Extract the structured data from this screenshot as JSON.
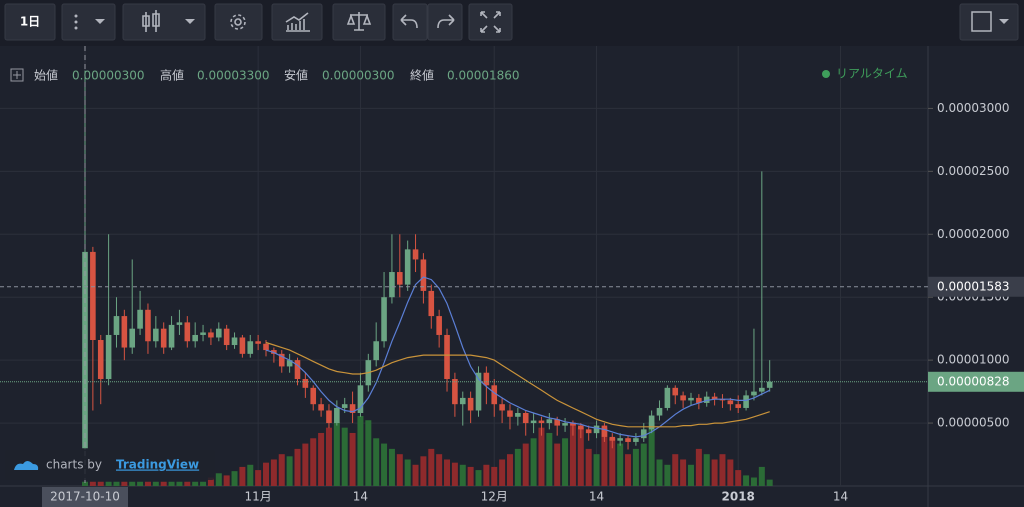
{
  "toolbar": {
    "interval": "1日"
  },
  "legend": {
    "open_label": "始値",
    "open": "0.00000300",
    "high_label": "高値",
    "high": "0.00003300",
    "low_label": "安値",
    "low": "0.00000300",
    "close_label": "終値",
    "close": "0.00001860",
    "status": "リアルタイム"
  },
  "branding": {
    "prefix": "charts by",
    "name": "TradingView"
  },
  "chart_data": {
    "type": "candlestick",
    "categories": [
      "2017-10-10",
      null,
      null,
      null,
      null,
      null,
      null,
      null,
      null,
      null,
      null,
      null,
      null,
      null,
      null,
      null,
      null,
      null,
      null,
      null,
      null,
      null,
      "11月",
      null,
      null,
      null,
      null,
      null,
      null,
      null,
      null,
      null,
      null,
      null,
      null,
      "14",
      null,
      null,
      null,
      null,
      null,
      null,
      null,
      null,
      null,
      null,
      null,
      null,
      null,
      null,
      null,
      null,
      "12月",
      null,
      null,
      null,
      null,
      null,
      null,
      null,
      null,
      null,
      null,
      null,
      null,
      "14",
      null,
      null,
      null,
      null,
      null,
      null,
      null,
      null,
      null,
      null,
      null,
      null,
      null,
      null,
      null,
      null,
      null,
      "2018",
      null,
      null,
      null,
      null,
      null,
      null,
      null,
      null,
      null,
      null,
      null,
      null,
      "14",
      null,
      null,
      null,
      null,
      null,
      null,
      null,
      null,
      null,
      null
    ],
    "open": [
      3e-06,
      1.86e-05,
      1.16e-05,
      8.5e-06,
      1.2e-05,
      1.35e-05,
      1.1e-05,
      1.25e-05,
      1.4e-05,
      1.15e-05,
      1.25e-05,
      1.1e-05,
      1.28e-05,
      1.3e-05,
      1.15e-05,
      1.2e-05,
      1.22e-05,
      1.18e-05,
      1.25e-05,
      1.12e-05,
      1.18e-05,
      1.05e-05,
      1.15e-05,
      1.13e-05,
      1.08e-05,
      1.05e-05,
      9.5e-06,
      1e-05,
      8.5e-06,
      7.8e-06,
      6.5e-06,
      6e-06,
      5e-06,
      6.2e-06,
      6.5e-06,
      5.8e-06,
      8e-06,
      1e-05,
      1.15e-05,
      1.5e-05,
      1.7e-05,
      1.6e-05,
      1.88e-05,
      1.8e-05,
      1.55e-05,
      1.35e-05,
      1.2e-05,
      8.5e-06,
      6.5e-06,
      7e-06,
      6e-06,
      9e-06,
      8e-06,
      6.5e-06,
      6e-06,
      5.5e-06,
      5.8e-06,
      5e-06,
      5.2e-06,
      5e-06,
      5.3e-06,
      4.8e-06,
      5e-06,
      4.8e-06,
      4.5e-06,
      4.2e-06,
      4.8e-06,
      3.9e-06,
      3.6e-06,
      3.8e-06,
      3.5e-06,
      3.8e-06,
      4.5e-06,
      5.6e-06,
      6.2e-06,
      7.8e-06,
      7.2e-06,
      6.8e-06,
      7e-06,
      6.6e-06,
      7.1e-06,
      6.9e-06,
      6.8e-06,
      6.5e-06,
      6.2e-06,
      7.2e-06,
      7.5e-06,
      7.8e-06,
      null,
      null,
      null,
      null,
      null,
      null,
      null,
      null,
      null,
      null,
      null,
      null,
      null,
      null,
      null,
      null,
      null,
      null,
      null
    ],
    "high": [
      3.3e-05,
      1.9e-05,
      1.2e-05,
      2e-05,
      1.5e-05,
      1.4e-05,
      1.8e-05,
      1.55e-05,
      1.45e-05,
      1.35e-05,
      1.3e-05,
      1.35e-05,
      1.4e-05,
      1.35e-05,
      1.3e-05,
      1.28e-05,
      1.25e-05,
      1.3e-05,
      1.28e-05,
      1.22e-05,
      1.2e-05,
      1.2e-05,
      1.2e-05,
      1.16e-05,
      1.1e-05,
      1.08e-05,
      1.05e-05,
      1.02e-05,
      9e-06,
      8e-06,
      7e-06,
      6.5e-06,
      6.8e-06,
      7e-06,
      7.5e-06,
      9e-06,
      1.05e-05,
      1.3e-05,
      1.7e-05,
      2e-05,
      2e-05,
      1.95e-05,
      2e-05,
      1.85e-05,
      1.6e-05,
      1.4e-05,
      1.25e-05,
      9e-06,
      7.5e-06,
      7.5e-06,
      9.5e-06,
      9.5e-06,
      8.5e-06,
      7e-06,
      6.5e-06,
      6.2e-06,
      6e-06,
      5.8e-06,
      5.5e-06,
      5.8e-06,
      5.5e-06,
      5.4e-06,
      5.2e-06,
      5e-06,
      4.8e-06,
      5.2e-06,
      5e-06,
      4.2e-06,
      4.2e-06,
      4e-06,
      4.2e-06,
      5e-06,
      6e-06,
      6.8e-06,
      8e-06,
      8e-06,
      7.5e-06,
      7.4e-06,
      7.3e-06,
      7.5e-06,
      7.4e-06,
      7.3e-06,
      7e-06,
      7.2e-06,
      7.6e-06,
      1.25e-05,
      2.5e-05,
      1e-05,
      null,
      null,
      null,
      null,
      null,
      null,
      null,
      null,
      null,
      null,
      null,
      null,
      null,
      null,
      null,
      null,
      null,
      null,
      null
    ],
    "low": [
      3e-06,
      6e-06,
      6.5e-06,
      8e-06,
      1.1e-05,
      1e-05,
      1.05e-05,
      1.2e-05,
      1.05e-05,
      1.1e-05,
      1.05e-05,
      1.08e-05,
      1.2e-05,
      1.1e-05,
      1.1e-05,
      1.15e-05,
      1.12e-05,
      1.15e-05,
      1.08e-05,
      1.09e-05,
      1.02e-05,
      1.02e-05,
      1.08e-05,
      1.03e-05,
      9.8e-06,
      9e-06,
      9e-06,
      8e-06,
      7e-06,
      6e-06,
      5.5e-06,
      4.6e-06,
      4.8e-06,
      5.8e-06,
      5e-06,
      5.5e-06,
      7.5e-06,
      9.5e-06,
      1.1e-05,
      1.45e-05,
      1.5e-05,
      1.55e-05,
      1.7e-05,
      1.45e-05,
      1.25e-05,
      1.1e-05,
      7.5e-06,
      5.5e-06,
      4.8e-06,
      5e-06,
      5.5e-06,
      6.5e-06,
      5.5e-06,
      5e-06,
      4.5e-06,
      4.8e-06,
      4e-06,
      4.2e-06,
      4e-06,
      4.5e-06,
      4e-06,
      4.3e-06,
      4e-06,
      3.8e-06,
      3.6e-06,
      3.8e-06,
      3.5e-06,
      3e-06,
      3.2e-06,
      2.9e-06,
      3.2e-06,
      3.5e-06,
      4.2e-06,
      5.2e-06,
      6e-06,
      6.5e-06,
      6.2e-06,
      6.4e-06,
      6.1e-06,
      6.3e-06,
      6.4e-06,
      6.2e-06,
      6e-06,
      5.8e-06,
      6e-06,
      6.8e-06,
      7.2e-06,
      7.5e-06,
      null,
      null,
      null,
      null,
      null,
      null,
      null,
      null,
      null,
      null,
      null,
      null,
      null,
      null,
      null,
      null,
      null,
      null,
      null
    ],
    "close": [
      1.86e-05,
      1.16e-05,
      8.5e-06,
      1.2e-05,
      1.35e-05,
      1.1e-05,
      1.25e-05,
      1.4e-05,
      1.15e-05,
      1.25e-05,
      1.1e-05,
      1.28e-05,
      1.3e-05,
      1.15e-05,
      1.2e-05,
      1.22e-05,
      1.18e-05,
      1.25e-05,
      1.12e-05,
      1.18e-05,
      1.05e-05,
      1.15e-05,
      1.13e-05,
      1.08e-05,
      1.05e-05,
      9.5e-06,
      1e-05,
      8.5e-06,
      7.8e-06,
      6.5e-06,
      6e-06,
      5e-06,
      6.2e-06,
      6.5e-06,
      5.8e-06,
      8e-06,
      1e-05,
      1.15e-05,
      1.5e-05,
      1.7e-05,
      1.6e-05,
      1.88e-05,
      1.8e-05,
      1.55e-05,
      1.35e-05,
      1.2e-05,
      8.5e-06,
      6.5e-06,
      7e-06,
      6e-06,
      9e-06,
      8e-06,
      6.5e-06,
      6e-06,
      5.5e-06,
      5.8e-06,
      5e-06,
      5.2e-06,
      5e-06,
      5.3e-06,
      4.8e-06,
      5e-06,
      4.8e-06,
      4.5e-06,
      4.2e-06,
      4.8e-06,
      3.9e-06,
      3.6e-06,
      3.8e-06,
      3.5e-06,
      3.8e-06,
      4.5e-06,
      5.6e-06,
      6.2e-06,
      7.8e-06,
      7.2e-06,
      6.8e-06,
      7e-06,
      6.6e-06,
      7.1e-06,
      6.9e-06,
      6.8e-06,
      6.5e-06,
      6.2e-06,
      7.2e-06,
      7.5e-06,
      7.8e-06,
      8.28e-06,
      null,
      null,
      null,
      null,
      null,
      null,
      null,
      null,
      null,
      null,
      null,
      null,
      null,
      null,
      null,
      null,
      null,
      null,
      null
    ],
    "volume": [
      4,
      4,
      4,
      4,
      4,
      4,
      4,
      4,
      4,
      4,
      4,
      4,
      4,
      4,
      4,
      4,
      8,
      12,
      10,
      14,
      18,
      20,
      15,
      22,
      25,
      30,
      28,
      35,
      40,
      45,
      50,
      55,
      60,
      55,
      50,
      66,
      62,
      45,
      40,
      35,
      30,
      25,
      20,
      28,
      35,
      30,
      25,
      22,
      20,
      18,
      15,
      20,
      18,
      25,
      30,
      35,
      40,
      45,
      55,
      50,
      40,
      45,
      60,
      55,
      35,
      30,
      55,
      45,
      40,
      30,
      35,
      40,
      60,
      25,
      20,
      30,
      25,
      20,
      35,
      30,
      25,
      30,
      25,
      15,
      10,
      8,
      18,
      6,
      null,
      null,
      null,
      null,
      null,
      null,
      null,
      null,
      null,
      null,
      null,
      null,
      null,
      null,
      null,
      null,
      null,
      null,
      null
    ],
    "lines": [
      {
        "color": "#5b7fd6",
        "values": [
          null,
          null,
          null,
          null,
          null,
          null,
          null,
          null,
          null,
          null,
          null,
          null,
          null,
          null,
          null,
          null,
          null,
          null,
          null,
          null,
          null,
          null,
          null,
          1.08e-05,
          1.06e-05,
          1.03e-05,
          1e-05,
          9.6e-06,
          9e-06,
          8.3e-06,
          7.5e-06,
          6.8e-06,
          6.3e-06,
          6e-06,
          5.9e-06,
          6.2e-06,
          7e-06,
          8.2e-06,
          9.8e-06,
          1.15e-05,
          1.3e-05,
          1.46e-05,
          1.6e-05,
          1.66e-05,
          1.64e-05,
          1.57e-05,
          1.45e-05,
          1.28e-05,
          1.1e-05,
          9.5e-06,
          8.5e-06,
          7.9e-06,
          7.4e-06,
          7e-06,
          6.6e-06,
          6.3e-06,
          6e-06,
          5.8e-06,
          5.6e-06,
          5.4e-06,
          5.3e-06,
          5.1e-06,
          5e-06,
          4.9e-06,
          4.7e-06,
          4.6e-06,
          4.5e-06,
          4.3e-06,
          4.1e-06,
          4e-06,
          3.9e-06,
          4e-06,
          4.3e-06,
          4.7e-06,
          5.2e-06,
          5.7e-06,
          6.1e-06,
          6.4e-06,
          6.6e-06,
          6.8e-06,
          6.9e-06,
          6.9e-06,
          6.9e-06,
          6.8e-06,
          6.8e-06,
          7e-06,
          7.3e-06,
          7.6e-06,
          null,
          null,
          null,
          null,
          null,
          null,
          null,
          null,
          null,
          null,
          null,
          null,
          null,
          null,
          null,
          null,
          null,
          null,
          null
        ]
      },
      {
        "color": "#c9933a",
        "values": [
          null,
          null,
          null,
          null,
          null,
          null,
          null,
          null,
          null,
          null,
          null,
          null,
          null,
          null,
          null,
          null,
          null,
          null,
          null,
          null,
          null,
          null,
          null,
          1.14e-05,
          1.12e-05,
          1.1e-05,
          1.08e-05,
          1.05e-05,
          1.02e-05,
          9.9e-06,
          9.6e-06,
          9.3e-06,
          9.1e-06,
          9e-06,
          8.9e-06,
          8.9e-06,
          9e-06,
          9.2e-06,
          9.5e-06,
          9.8e-06,
          1e-05,
          1.02e-05,
          1.03e-05,
          1.04e-05,
          1.04e-05,
          1.04e-05,
          1.04e-05,
          1.04e-05,
          1.04e-05,
          1.04e-05,
          1.03e-05,
          1.02e-05,
          1e-05,
          9.6e-06,
          9.2e-06,
          8.8e-06,
          8.4e-06,
          8e-06,
          7.6e-06,
          7.2e-06,
          6.8e-06,
          6.5e-06,
          6.2e-06,
          5.9e-06,
          5.6e-06,
          5.3e-06,
          5.1e-06,
          4.9e-06,
          4.8e-06,
          4.7e-06,
          4.7e-06,
          4.7e-06,
          4.7e-06,
          4.7e-06,
          4.7e-06,
          4.7e-06,
          4.8e-06,
          4.8e-06,
          4.9e-06,
          4.9e-06,
          5e-06,
          5e-06,
          5.1e-06,
          5.2e-06,
          5.3e-06,
          5.5e-06,
          5.7e-06,
          5.9e-06,
          null,
          null,
          null,
          null,
          null,
          null,
          null,
          null,
          null,
          null,
          null,
          null,
          null,
          null,
          null,
          null,
          null,
          null,
          null
        ]
      }
    ],
    "up_color": "#6ba583",
    "down_color": "#d75442",
    "volume_up_color": "#2b6b36",
    "volume_down_color": "#8e2a2c",
    "ylim": [
      0,
      3.48e-05
    ],
    "yticks": [
      {
        "value": 3e-05,
        "label": "0.00003000"
      },
      {
        "value": 2.5e-05,
        "label": "0.00002500"
      },
      {
        "value": 2e-05,
        "label": "0.00002000"
      },
      {
        "value": 1.5e-05,
        "label": "0.00001500"
      },
      {
        "value": 1e-05,
        "label": "0.00001000"
      },
      {
        "value": 5e-06,
        "label": "0.00000500"
      }
    ],
    "price_lines": [
      {
        "value": 1.583e-05,
        "label": "0.00001583",
        "color": "#8a8f9c"
      },
      {
        "value": 8.28e-06,
        "label": "0.00000828",
        "color": "#6ba583"
      }
    ],
    "grid": true
  }
}
